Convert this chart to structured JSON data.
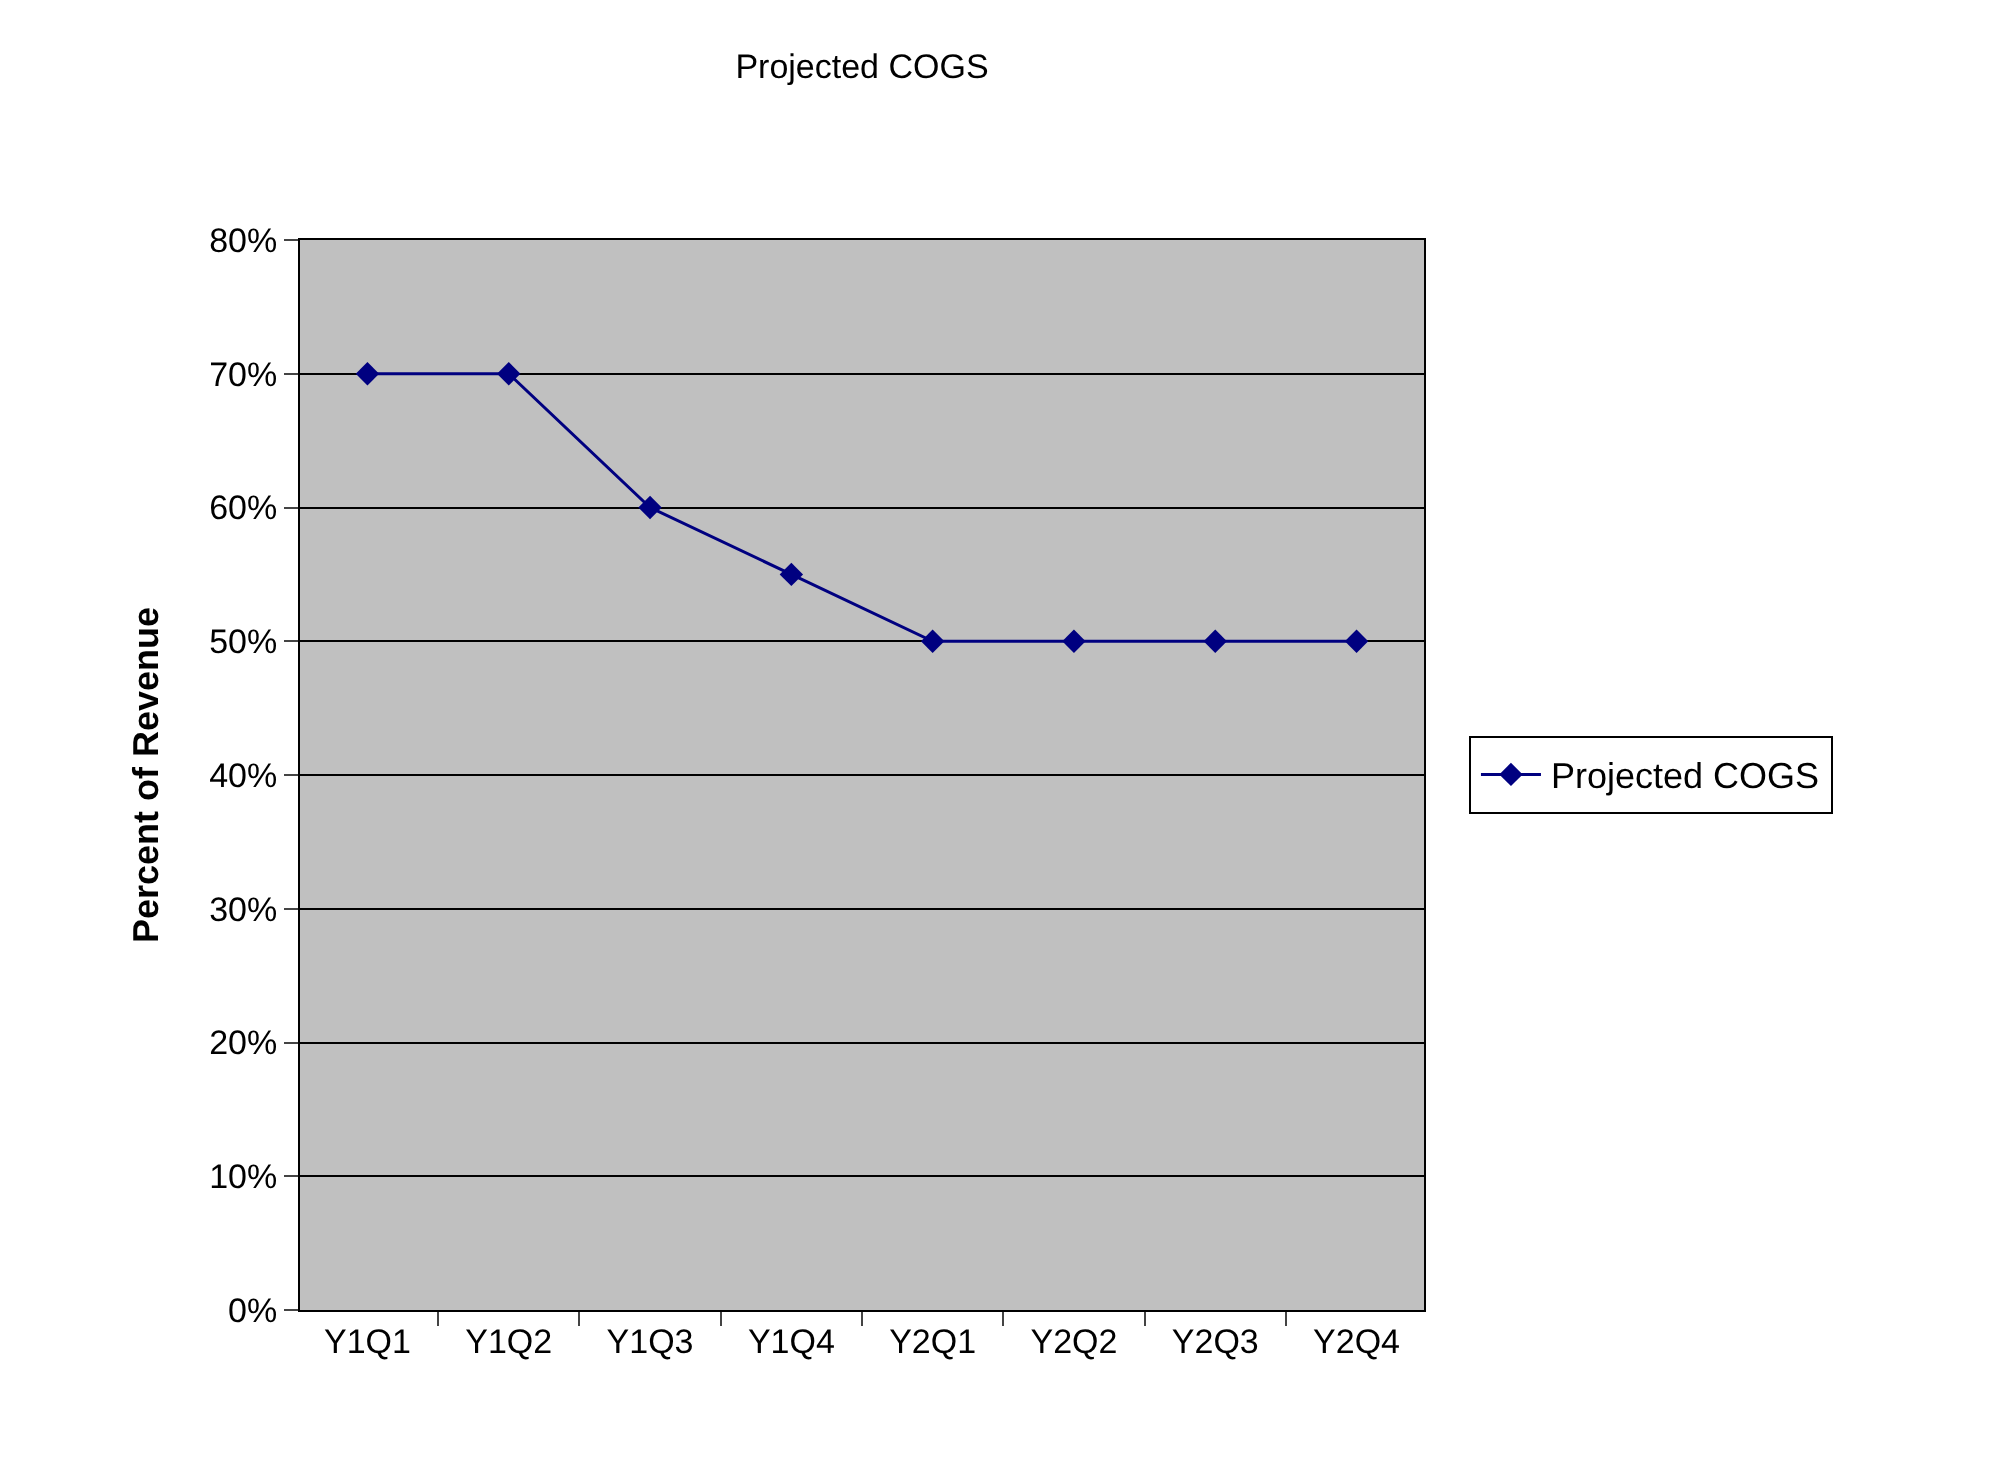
{
  "chart_data": {
    "type": "line",
    "title": "Projected COGS",
    "ylabel": "Percent of Revenue",
    "categories": [
      "Y1Q1",
      "Y1Q2",
      "Y1Q3",
      "Y1Q4",
      "Y2Q1",
      "Y2Q2",
      "Y2Q3",
      "Y2Q4"
    ],
    "series": [
      {
        "name": "Projected COGS",
        "color": "#000080",
        "values": [
          70,
          70,
          60,
          55,
          50,
          50,
          50,
          50
        ]
      }
    ],
    "ylim": [
      0,
      80
    ],
    "yticks": [
      {
        "value": 0,
        "label": "0%"
      },
      {
        "value": 10,
        "label": "10%"
      },
      {
        "value": 20,
        "label": "20%"
      },
      {
        "value": 30,
        "label": "30%"
      },
      {
        "value": 40,
        "label": "40%"
      },
      {
        "value": 50,
        "label": "50%"
      },
      {
        "value": 60,
        "label": "60%"
      },
      {
        "value": 70,
        "label": "70%"
      },
      {
        "value": 80,
        "label": "80%"
      }
    ],
    "grid": "y",
    "legend": "right",
    "marker": "diamond",
    "line_style": "solid"
  }
}
